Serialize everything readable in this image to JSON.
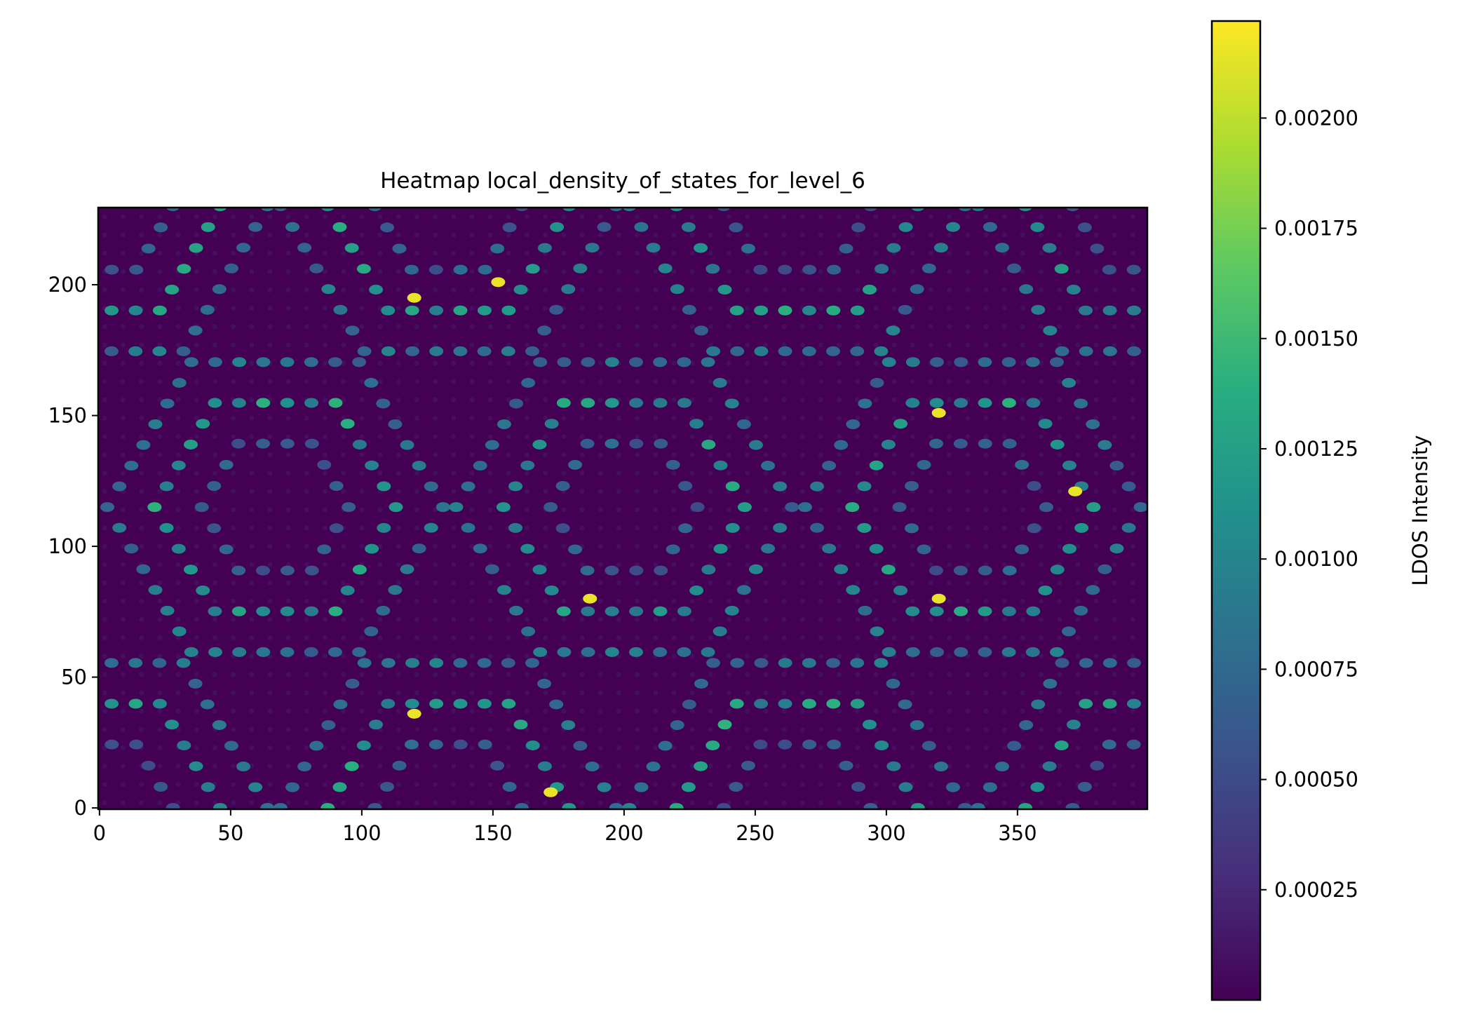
{
  "chart_data": {
    "type": "heatmap",
    "title": "Heatmap local_density_of_states_for_level_6",
    "xlabel": "",
    "ylabel": "",
    "xlim": [
      0,
      399
    ],
    "ylim": [
      0,
      229
    ],
    "x_ticks": [
      0,
      50,
      100,
      150,
      200,
      250,
      300,
      350
    ],
    "y_ticks": [
      0,
      50,
      100,
      150,
      200
    ],
    "colormap": "viridis",
    "grid": false,
    "colorbar": {
      "label": "LDOS Intensity",
      "range": [
        0.0,
        0.00222
      ],
      "ticks": [
        0.00025,
        0.0005,
        0.00075,
        0.001,
        0.00125,
        0.0015,
        0.00175,
        0.002
      ],
      "tick_labels": [
        "0.00025",
        "0.00050",
        "0.00075",
        "0.00100",
        "0.00125",
        "0.00150",
        "0.00175",
        "0.00200"
      ]
    },
    "pattern": {
      "description_of_values": "hexagonal rings of bright LDOS spots on a dark background",
      "ring_centers": [
        [
          67,
          115
        ],
        [
          200,
          115
        ],
        [
          333,
          115
        ],
        [
          133,
          0
        ],
        [
          266,
          0
        ],
        [
          0,
          0
        ],
        [
          399,
          0
        ],
        [
          133,
          230
        ],
        [
          266,
          230
        ],
        [
          0,
          230
        ],
        [
          399,
          230
        ]
      ],
      "ring_radii": [
        28,
        46,
        64
      ],
      "spot_spacing": 9,
      "background_value": 5e-05,
      "ring_peak_value": 0.0012,
      "max_value": 0.00222,
      "brightest_spots": [
        [
          120,
          195
        ],
        [
          120,
          36
        ],
        [
          320,
          151
        ],
        [
          320,
          80
        ],
        [
          372,
          121
        ],
        [
          172,
          6
        ],
        [
          187,
          80
        ],
        [
          152,
          201
        ]
      ]
    }
  }
}
